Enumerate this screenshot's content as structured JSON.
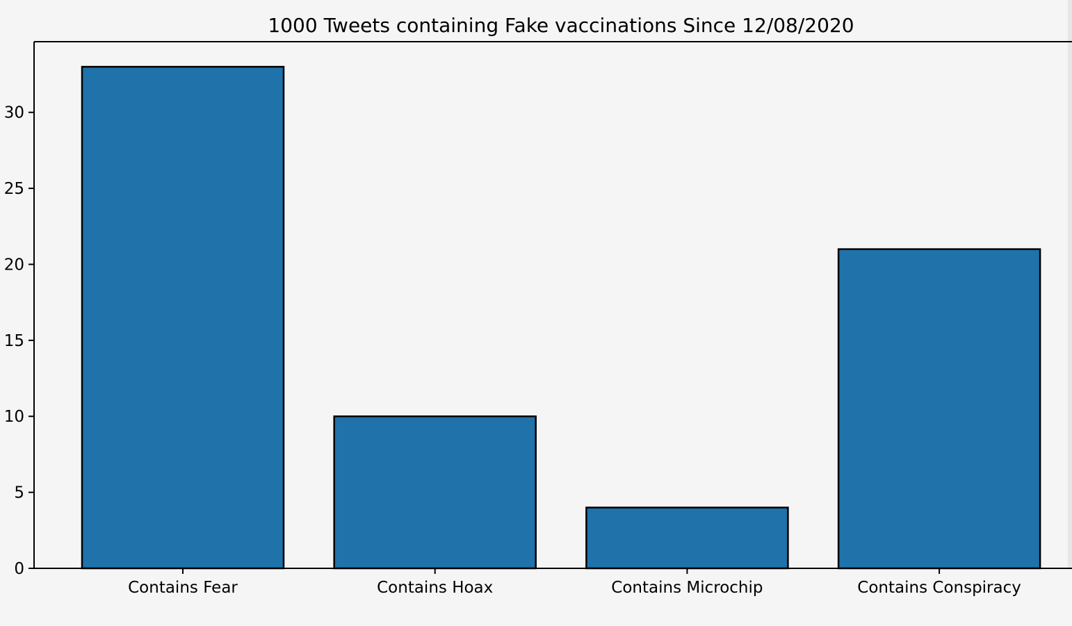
{
  "colors": {
    "background": "#f5f5f5",
    "bar_fill": "#1f72aa",
    "bar_edge": "#000000",
    "axis": "#000000"
  },
  "chart_data": {
    "type": "bar",
    "title": "1000 Tweets containing Fake vaccinations Since 12/08/2020",
    "xlabel": "",
    "ylabel": "",
    "categories": [
      "Contains Fear",
      "Contains Hoax",
      "Contains Microchip",
      "Contains Conspiracy"
    ],
    "values": [
      33,
      10,
      4,
      21
    ],
    "ylim": [
      0,
      34.65
    ],
    "yticks": [
      0,
      5,
      10,
      15,
      20,
      25,
      30
    ],
    "grid": false,
    "legend": "none"
  }
}
